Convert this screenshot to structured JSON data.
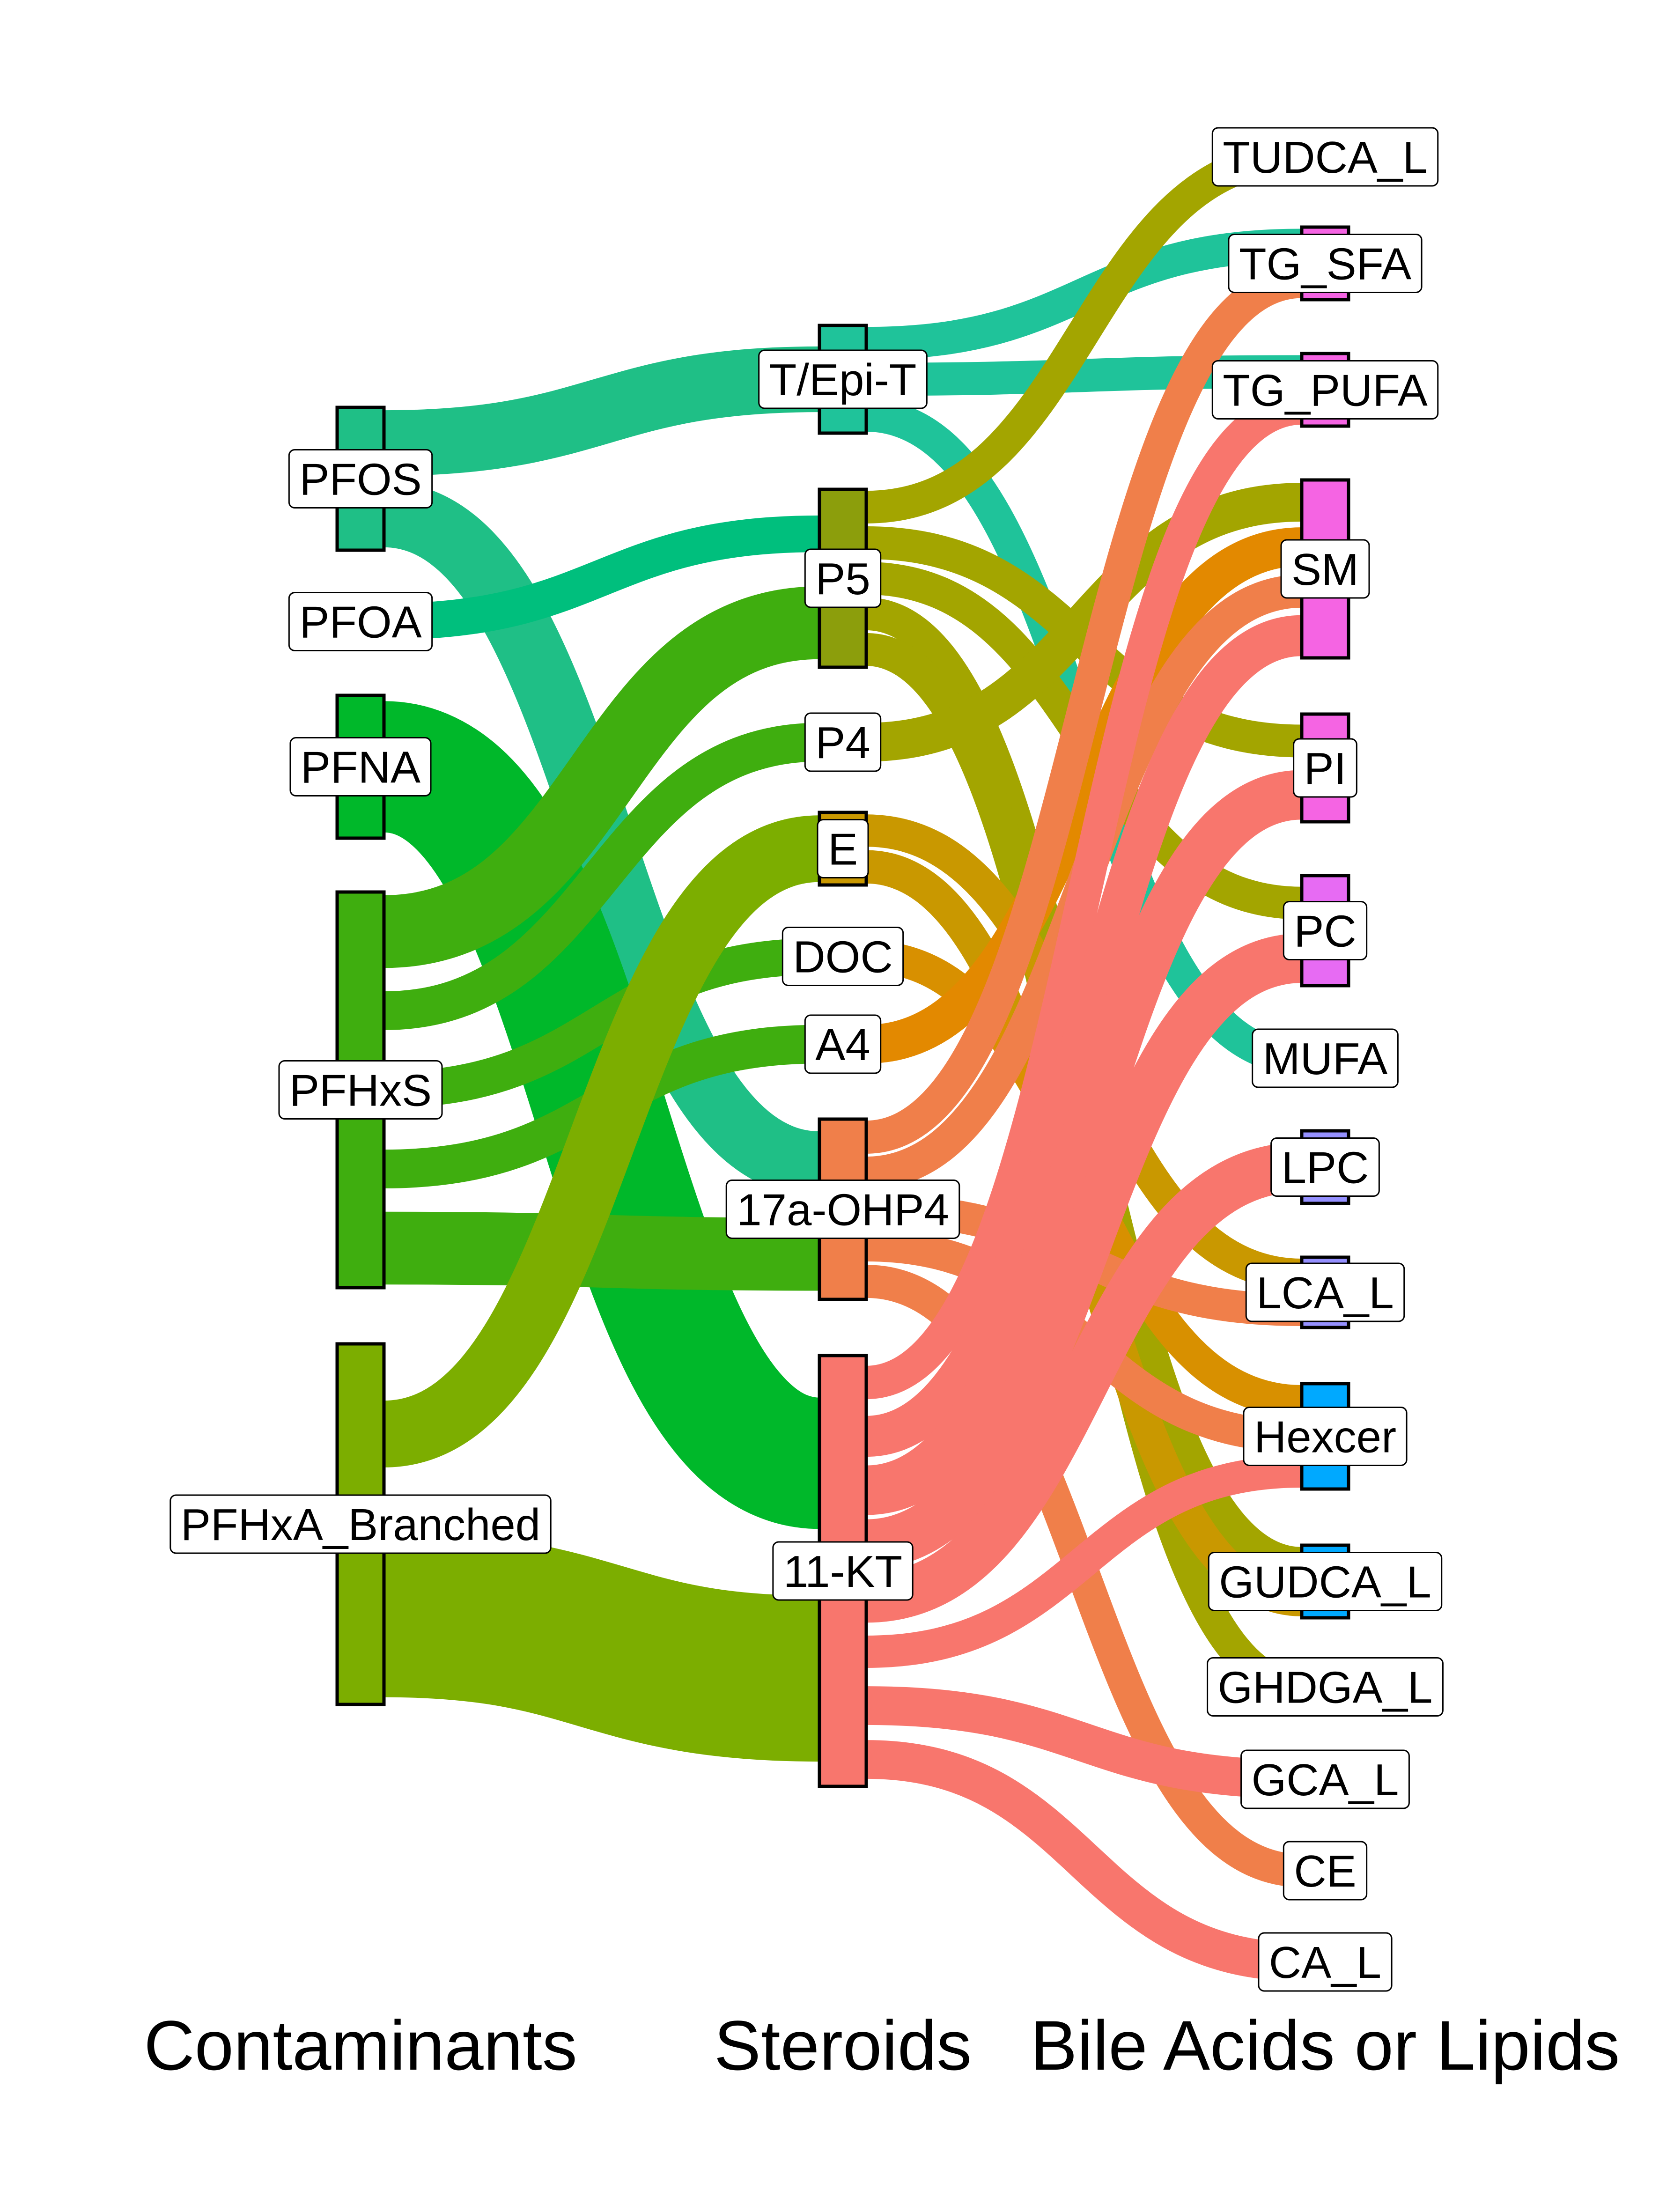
{
  "axes": [
    "Contaminants",
    "Steroids",
    "Bile Acids or Lipids"
  ],
  "nodes": {
    "contaminants": [
      {
        "id": "PFOS",
        "label": "PFOS",
        "color": "#1fbf86"
      },
      {
        "id": "PFOA",
        "label": "PFOA",
        "color": "#00bf7d"
      },
      {
        "id": "PFNA",
        "label": "PFNA",
        "color": "#00b82a"
      },
      {
        "id": "PFHxS",
        "label": "PFHxS",
        "color": "#3fae0f"
      },
      {
        "id": "PFHxA_Branched",
        "label": "PFHxA_Branched",
        "color": "#7cae00"
      }
    ],
    "steroids": [
      {
        "id": "T/Epi-T",
        "label": "T/Epi-T",
        "color": "#1fc39a"
      },
      {
        "id": "P5",
        "label": "P5",
        "color": "#8c9e0c"
      },
      {
        "id": "P4",
        "label": "P4",
        "color": "#a3a500"
      },
      {
        "id": "E",
        "label": "E",
        "color": "#c99800"
      },
      {
        "id": "DOC",
        "label": "DOC",
        "color": "#d89000"
      },
      {
        "id": "A4",
        "label": "A4",
        "color": "#e38900"
      },
      {
        "id": "17a-OHP4",
        "label": "17a-OHP4",
        "color": "#f07f4a"
      },
      {
        "id": "11-KT",
        "label": "11-KT",
        "color": "#f8766d"
      }
    ],
    "outcomes": [
      {
        "id": "TUDCA_L",
        "label": "TUDCA_L",
        "color": "#a3a500"
      },
      {
        "id": "TG_SFA",
        "label": "TG_SFA",
        "color": "#f564e3"
      },
      {
        "id": "TG_PUFA",
        "label": "TG_PUFA",
        "color": "#f564e3"
      },
      {
        "id": "SM",
        "label": "SM",
        "color": "#f564e3"
      },
      {
        "id": "PI",
        "label": "PI",
        "color": "#f564e3"
      },
      {
        "id": "PC",
        "label": "PC",
        "color": "#e76bf3"
      },
      {
        "id": "MUFA",
        "label": "MUFA",
        "color": "#00c19a"
      },
      {
        "id": "LPC",
        "label": "LPC",
        "color": "#9590ff"
      },
      {
        "id": "LCA_L",
        "label": "LCA_L",
        "color": "#9590ff"
      },
      {
        "id": "Hexcer",
        "label": "Hexcer",
        "color": "#00a9ff"
      },
      {
        "id": "GUDCA_L",
        "label": "GUDCA_L",
        "color": "#00a9ff"
      },
      {
        "id": "GHDGA_L",
        "label": "GHDGA_L",
        "color": "#a3a500"
      },
      {
        "id": "GCA_L",
        "label": "GCA_L",
        "color": "#f8766d"
      },
      {
        "id": "CE",
        "label": "CE",
        "color": "#f07f4a"
      },
      {
        "id": "CA_L",
        "label": "CA_L",
        "color": "#f8766d"
      }
    ]
  },
  "links_stage1": [
    {
      "source": "PFOS",
      "target": "T/Epi-T",
      "color": "#1fbf86"
    },
    {
      "source": "PFOS",
      "target": "17a-OHP4",
      "color": "#1fbf86"
    },
    {
      "source": "PFOA",
      "target": "P5",
      "color": "#00bf7d"
    },
    {
      "source": "PFNA",
      "target": "11-KT",
      "color": "#00b82a"
    },
    {
      "source": "PFHxS",
      "target": "P5",
      "color": "#3fae0f"
    },
    {
      "source": "PFHxS",
      "target": "P4",
      "color": "#3fae0f"
    },
    {
      "source": "PFHxS",
      "target": "DOC",
      "color": "#3fae0f"
    },
    {
      "source": "PFHxS",
      "target": "A4",
      "color": "#3fae0f"
    },
    {
      "source": "PFHxS",
      "target": "17a-OHP4",
      "color": "#3fae0f"
    },
    {
      "source": "PFHxA_Branched",
      "target": "E",
      "color": "#7cae00"
    },
    {
      "source": "PFHxA_Branched",
      "target": "11-KT",
      "color": "#7cae00"
    }
  ],
  "links_stage2": [
    {
      "source": "T/Epi-T",
      "target": "TG_SFA",
      "color": "#1fc39a"
    },
    {
      "source": "T/Epi-T",
      "target": "TG_PUFA",
      "color": "#1fc39a"
    },
    {
      "source": "T/Epi-T",
      "target": "MUFA",
      "color": "#1fc39a"
    },
    {
      "source": "P5",
      "target": "TUDCA_L",
      "color": "#a3a500"
    },
    {
      "source": "P5",
      "target": "PI",
      "color": "#a3a500"
    },
    {
      "source": "P5",
      "target": "PC",
      "color": "#a3a500"
    },
    {
      "source": "P5",
      "target": "GUDCA_L",
      "color": "#a3a500"
    },
    {
      "source": "P5",
      "target": "GHDGA_L",
      "color": "#a3a500"
    },
    {
      "source": "P4",
      "target": "SM",
      "color": "#a3a500"
    },
    {
      "source": "E",
      "target": "LCA_L",
      "color": "#c99800"
    },
    {
      "source": "E",
      "target": "GUDCA_L",
      "color": "#c99800"
    },
    {
      "source": "DOC",
      "target": "Hexcer",
      "color": "#d89000"
    },
    {
      "source": "A4",
      "target": "SM",
      "color": "#e38900"
    },
    {
      "source": "17a-OHP4",
      "target": "TG_SFA",
      "color": "#f07f4a"
    },
    {
      "source": "17a-OHP4",
      "target": "SM",
      "color": "#f07f4a"
    },
    {
      "source": "17a-OHP4",
      "target": "LCA_L",
      "color": "#f07f4a"
    },
    {
      "source": "17a-OHP4",
      "target": "Hexcer",
      "color": "#f07f4a"
    },
    {
      "source": "17a-OHP4",
      "target": "CE",
      "color": "#f07f4a"
    },
    {
      "source": "11-KT",
      "target": "TG_PUFA",
      "color": "#f8766d"
    },
    {
      "source": "11-KT",
      "target": "SM",
      "color": "#f8766d"
    },
    {
      "source": "11-KT",
      "target": "PI",
      "color": "#f8766d"
    },
    {
      "source": "11-KT",
      "target": "PC",
      "color": "#f8766d"
    },
    {
      "source": "11-KT",
      "target": "LPC",
      "color": "#f8766d"
    },
    {
      "source": "11-KT",
      "target": "Hexcer",
      "color": "#f8766d"
    },
    {
      "source": "11-KT",
      "target": "GCA_L",
      "color": "#f8766d"
    },
    {
      "source": "11-KT",
      "target": "CA_L",
      "color": "#f8766d"
    }
  ]
}
